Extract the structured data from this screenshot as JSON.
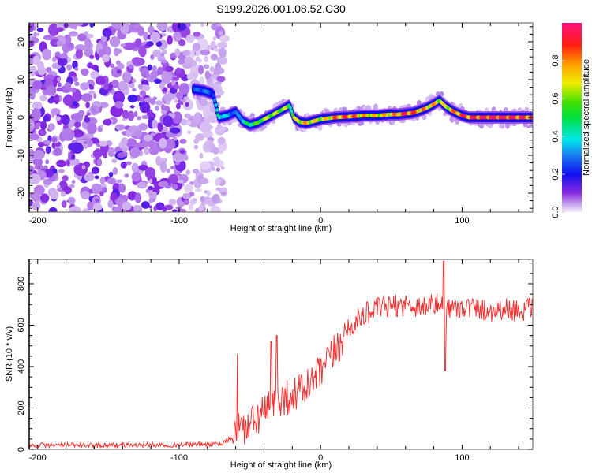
{
  "chart_data": [
    {
      "type": "heatmap",
      "title": "S199.2026.001.08.52.C30",
      "xlabel": "Height of straight line (km)",
      "ylabel": "Frequency (Hz)",
      "xlim": [
        -206,
        150
      ],
      "ylim": [
        -25,
        25
      ],
      "xticks": [
        -200,
        -100,
        0,
        100
      ],
      "xtick_labels": [
        "-200",
        "-100",
        "0",
        "100"
      ],
      "yticks": [
        -20,
        -10,
        0,
        10,
        20
      ],
      "ytick_labels": [
        "-20",
        "-10",
        "0",
        "10",
        "20"
      ],
      "noise_region_x": [
        -206,
        -72
      ],
      "ridge": {
        "x": [
          -90,
          -82,
          -76,
          -72,
          -66,
          -60,
          -55,
          -50,
          -45,
          -40,
          -35,
          -30,
          -25,
          -22,
          -19,
          -15,
          -10,
          -5,
          0,
          10,
          20,
          30,
          40,
          50,
          55,
          60,
          65,
          70,
          75,
          80,
          84,
          88,
          92,
          96,
          100,
          105,
          110,
          120,
          130,
          140,
          150
        ],
        "frequency": [
          7.5,
          7,
          6.2,
          0,
          0.5,
          1.5,
          -1,
          -2,
          -1.5,
          -0.5,
          0.5,
          1.5,
          2.5,
          3.2,
          0,
          -1.2,
          -1.5,
          -1,
          -0.5,
          0,
          0.2,
          0.5,
          0.5,
          0.8,
          0.8,
          1,
          1.2,
          1.8,
          2.5,
          3.5,
          4.5,
          3,
          2,
          1.2,
          0.5,
          0,
          0,
          0,
          0,
          0,
          0
        ],
        "amplitude": [
          0.25,
          0.3,
          0.25,
          0.45,
          0.35,
          0.25,
          0.4,
          0.5,
          0.55,
          0.6,
          0.65,
          0.6,
          0.65,
          0.5,
          0.6,
          0.7,
          0.75,
          0.7,
          0.65,
          0.8,
          0.85,
          0.75,
          0.7,
          0.75,
          0.8,
          0.9,
          0.85,
          0.8,
          0.75,
          0.75,
          0.7,
          0.65,
          0.75,
          0.8,
          0.9,
          0.85,
          0.9,
          0.95,
          0.95,
          0.9,
          0.85
        ]
      },
      "colorbar": {
        "label": "Normalized spectral amplitude",
        "range": [
          0,
          1
        ],
        "ticks": [
          0.0,
          0.2,
          0.4,
          0.6,
          0.8
        ],
        "tick_labels": [
          "0.0",
          "0.2",
          "0.4",
          "0.6",
          "0.8"
        ]
      }
    },
    {
      "type": "line",
      "xlabel": "Height of straight line (km)",
      "ylabel": "SNR (10 * v/v)",
      "xlim": [
        -206,
        150
      ],
      "ylim": [
        0,
        918
      ],
      "xticks": [
        -200,
        -100,
        0,
        100
      ],
      "xtick_labels": [
        "-200",
        "-100",
        "0",
        "100"
      ],
      "yticks": [
        0,
        200,
        400,
        600,
        800
      ],
      "ytick_labels": [
        "0",
        "200",
        "400",
        "600",
        "800"
      ],
      "series": [
        {
          "name": "SNR",
          "color": "#ee3333",
          "x": [
            -206,
            -150,
            -100,
            -70,
            -62,
            -58,
            -55,
            -50,
            -45,
            -40,
            -35,
            -30,
            -25,
            -20,
            -15,
            -10,
            -5,
            0,
            5,
            10,
            15,
            20,
            30,
            40,
            50,
            60,
            70,
            80,
            85,
            88,
            90,
            95,
            100,
            110,
            120,
            130,
            140,
            150
          ],
          "values": [
            20,
            20,
            22,
            25,
            60,
            120,
            100,
            110,
            150,
            180,
            200,
            240,
            250,
            260,
            280,
            300,
            330,
            370,
            420,
            470,
            530,
            580,
            650,
            680,
            690,
            700,
            690,
            700,
            700,
            650,
            690,
            680,
            690,
            680,
            670,
            680,
            670,
            680
          ]
        }
      ],
      "annotations": {
        "peaks": [
          {
            "x": -59,
            "y": 460
          },
          {
            "x": -35,
            "y": 520
          },
          {
            "x": -31,
            "y": 550
          },
          {
            "x": 87,
            "y": 910
          },
          {
            "x": 88,
            "y": 380
          }
        ]
      }
    }
  ]
}
